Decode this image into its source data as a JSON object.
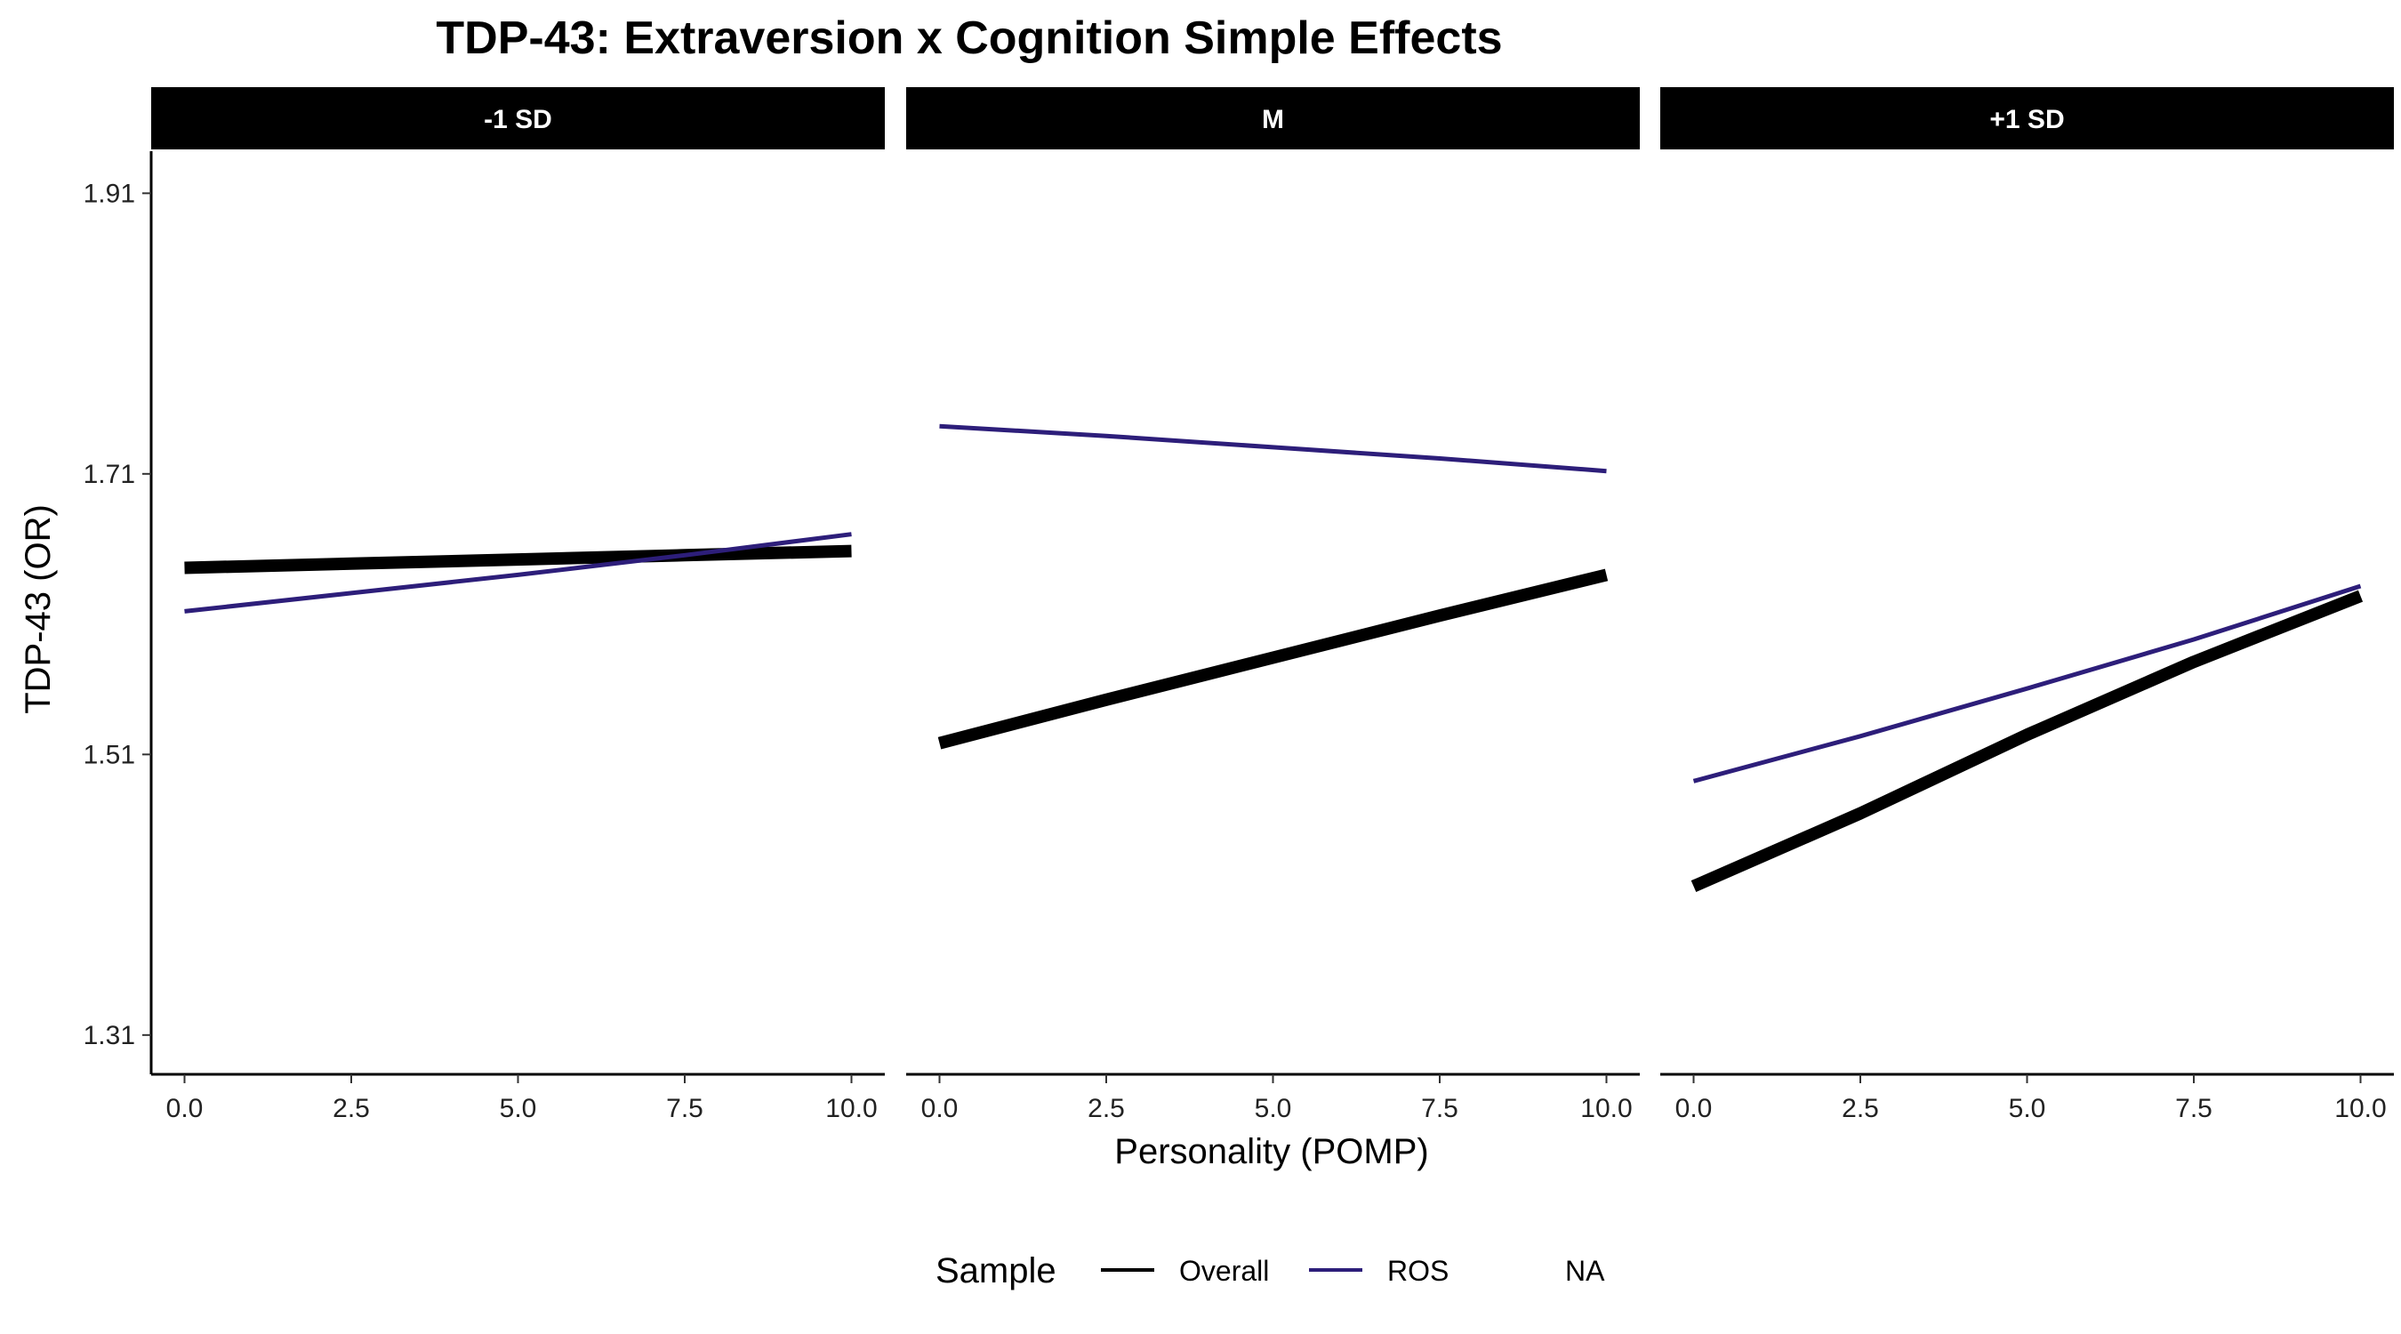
{
  "chart_data": {
    "type": "line",
    "title": "TDP-43: Extraversion x Cognition Simple Effects",
    "xlabel": "Personality (POMP)",
    "ylabel": "TDP-43 (OR)",
    "x_ticks": [
      "0.0",
      "2.5",
      "5.0",
      "7.5",
      "10.0"
    ],
    "y_ticks": [
      "1.31",
      "1.51",
      "1.71",
      "1.91"
    ],
    "xlim": [
      -0.5,
      10.5
    ],
    "ylim": [
      1.282,
      1.94
    ],
    "grid": false,
    "legend": {
      "title": "Sample",
      "position": "bottom",
      "entries": [
        "Overall",
        "ROS",
        "NA"
      ]
    },
    "colors": {
      "Overall": "#000000",
      "ROS": "#2d1e7a"
    },
    "panels": [
      {
        "label": "-1 SD",
        "series": [
          {
            "name": "Overall",
            "x": [
              0,
              2.5,
              5,
              7.5,
              10
            ],
            "y": [
              1.643,
              1.646,
              1.649,
              1.652,
              1.655
            ]
          },
          {
            "name": "ROS",
            "x": [
              0,
              2.5,
              5,
              7.5,
              10
            ],
            "y": [
              1.612,
              1.625,
              1.638,
              1.652,
              1.667
            ]
          }
        ]
      },
      {
        "label": "M",
        "series": [
          {
            "name": "Overall",
            "x": [
              0,
              2.5,
              5,
              7.5,
              10
            ],
            "y": [
              1.518,
              1.549,
              1.579,
              1.609,
              1.638
            ]
          },
          {
            "name": "ROS",
            "x": [
              0,
              2.5,
              5,
              7.5,
              10
            ],
            "y": [
              1.744,
              1.737,
              1.729,
              1.721,
              1.712
            ]
          }
        ]
      },
      {
        "label": "+1 SD",
        "series": [
          {
            "name": "Overall",
            "x": [
              0,
              2.5,
              5,
              7.5,
              10
            ],
            "y": [
              1.416,
              1.468,
              1.524,
              1.576,
              1.623
            ]
          },
          {
            "name": "ROS",
            "x": [
              0,
              2.5,
              5,
              7.5,
              10
            ],
            "y": [
              1.491,
              1.523,
              1.557,
              1.592,
              1.63
            ]
          }
        ]
      }
    ]
  }
}
